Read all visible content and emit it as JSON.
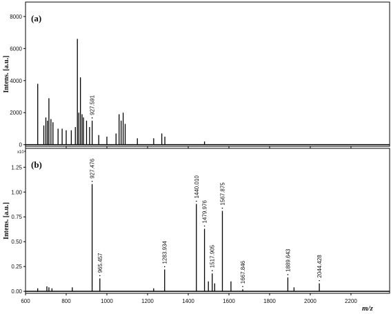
{
  "chart_data": [
    {
      "type": "stem",
      "panel_label": "(a)",
      "y_label": "Intens. [a.u.]",
      "color": "#000000",
      "xlim": [
        600,
        2390
      ],
      "xticks": [
        600,
        800,
        1000,
        1200,
        1400,
        1600,
        1800,
        2000,
        2200
      ],
      "ylim": [
        -100,
        8900
      ],
      "yticks": [
        0,
        2000,
        4000,
        6000,
        8000
      ],
      "x": [
        660,
        690,
        700,
        708,
        715,
        725,
        735,
        760,
        780,
        800,
        825,
        845,
        855,
        862,
        870,
        878,
        885,
        900,
        915,
        927.591,
        960,
        1000,
        1045,
        1060,
        1070,
        1080,
        1090,
        1150,
        1230,
        1270,
        1285,
        1480
      ],
      "values": [
        3800,
        1200,
        1700,
        1500,
        2900,
        1600,
        1400,
        1000,
        1000,
        900,
        900,
        1100,
        6600,
        2000,
        4200,
        1900,
        1700,
        1500,
        1100,
        1500,
        600,
        500,
        700,
        1900,
        1500,
        2000,
        1300,
        400,
        400,
        700,
        500,
        200
      ],
      "annotations": [
        {
          "x": 927.591,
          "y": 1500,
          "text": "927.591"
        }
      ]
    },
    {
      "type": "stem",
      "panel_label": "(b)",
      "y_label": "Intens. [a.u.]",
      "x_label": "m/z",
      "multiplier": "x10⁴",
      "color": "#000000",
      "xlim": [
        600,
        2390
      ],
      "xticks": [
        600,
        800,
        1000,
        1200,
        1400,
        1600,
        1800,
        2000,
        2200
      ],
      "ylim": [
        -0.02,
        1.44
      ],
      "yticks": [
        {
          "value": 0,
          "label": "0.00"
        },
        {
          "value": 0.25,
          "label": "0.25"
        },
        {
          "value": 0.5,
          "label": "0.50"
        },
        {
          "value": 0.75,
          "label": "0.75"
        },
        {
          "value": 1,
          "label": "1.00"
        },
        {
          "value": 1.25,
          "label": "1.25"
        }
      ],
      "x": [
        660,
        705,
        715,
        730,
        830,
        927.476,
        965.457,
        1230,
        1283.934,
        1440.01,
        1479.976,
        1499,
        1517.905,
        1530,
        1567.875,
        1610,
        1667.846,
        1889.643,
        1920,
        2044.428
      ],
      "values": [
        0.03,
        0.05,
        0.04,
        0.03,
        0.04,
        1.08,
        0.13,
        0.03,
        0.22,
        0.88,
        0.63,
        0.1,
        0.18,
        0.08,
        0.81,
        0.1,
        0.02,
        0.14,
        0.04,
        0.08
      ],
      "annotations": [
        {
          "x": 927.476,
          "y": 1.08,
          "text": "927.476"
        },
        {
          "x": 965.457,
          "y": 0.13,
          "text": "965.457"
        },
        {
          "x": 1283.934,
          "y": 0.22,
          "text": "1283.934"
        },
        {
          "x": 1440.01,
          "y": 0.88,
          "text": "1440.010"
        },
        {
          "x": 1479.976,
          "y": 0.63,
          "text": "1479.976"
        },
        {
          "x": 1517.905,
          "y": 0.18,
          "text": "1517.905"
        },
        {
          "x": 1567.875,
          "y": 0.81,
          "text": "1567.875"
        },
        {
          "x": 1667.846,
          "y": 0.02,
          "text": "1667.846"
        },
        {
          "x": 1889.643,
          "y": 0.14,
          "text": "1889.643"
        },
        {
          "x": 2044.428,
          "y": 0.08,
          "text": "2044.428"
        }
      ]
    }
  ]
}
